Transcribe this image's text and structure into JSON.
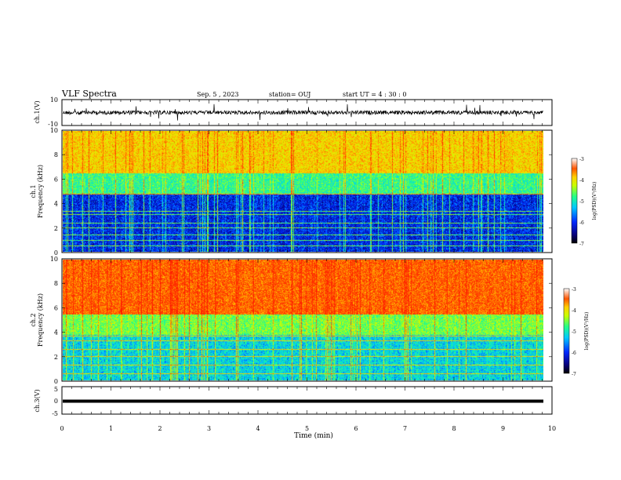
{
  "header": {
    "title": "VLF Spectra",
    "date": "Sep. 5 , 2023",
    "station": "station= OUJ",
    "start": "start  UT =  4 : 30 : 0"
  },
  "chart_data": [
    {
      "type": "line",
      "panel": "ch.1 waveform",
      "ylabel": "ch.1(V)",
      "ylim": [
        -10,
        10
      ],
      "y_ticks": [
        "10",
        "-10"
      ],
      "baseline": 0,
      "series": [
        {
          "values_range": [
            -10,
            10
          ]
        }
      ]
    },
    {
      "type": "heatmap",
      "panel": "ch.1 spectrogram",
      "ylabel": "ch.1  Frequency (kHz)",
      "ylim": [
        0,
        10
      ],
      "y_ticks": [
        "0",
        "2",
        "4",
        "6",
        "8",
        "10"
      ],
      "xlim": [
        0,
        10
      ],
      "colorbar": {
        "label": "log(PSD)(V²/Hz)",
        "range": [
          -7,
          -3
        ],
        "ticks": [
          "-3",
          "-4",
          "-5",
          "-6",
          "-7"
        ]
      },
      "bands": [
        {
          "f_range": [
            0,
            4.8
          ],
          "level": -6.5
        },
        {
          "f_range": [
            4.8,
            6.5
          ],
          "level": -5.3
        },
        {
          "f_range": [
            6.5,
            10
          ],
          "level": -4.2
        }
      ],
      "tone_lines_khz": [
        0.5,
        1.0,
        1.4,
        2.0,
        2.4,
        3.1,
        3.4,
        4.8
      ]
    },
    {
      "type": "heatmap",
      "panel": "ch.2 spectrogram",
      "ylabel": "ch.2  Frequency (kHz)",
      "ylim": [
        0,
        10
      ],
      "y_ticks": [
        "0",
        "2",
        "4",
        "6",
        "8",
        "10"
      ],
      "xlim": [
        0,
        10
      ],
      "colorbar": {
        "label": "log(PSD)(V²/Hz)",
        "range": [
          -7,
          -3
        ],
        "ticks": [
          "-3",
          "-4",
          "-5",
          "-6",
          "-7"
        ]
      },
      "bands": [
        {
          "f_range": [
            0,
            3.8
          ],
          "level": -5.7
        },
        {
          "f_range": [
            3.8,
            5.5
          ],
          "level": -5.0
        },
        {
          "f_range": [
            5.5,
            10
          ],
          "level": -3.6
        }
      ],
      "tone_lines_khz": [
        0.6,
        1.3,
        2.0,
        2.6,
        3.3,
        3.7
      ]
    },
    {
      "type": "line",
      "panel": "ch.3 waveform",
      "ylabel": "ch.3(V)",
      "ylim": [
        -5,
        5
      ],
      "y_ticks": [
        "5",
        "0",
        "-5"
      ],
      "series": [
        {
          "values": [
            0,
            0
          ]
        }
      ]
    }
  ],
  "x_axis": {
    "label": "Time  (min)",
    "ticks": [
      "0",
      "1",
      "2",
      "3",
      "4",
      "5",
      "6",
      "7",
      "8",
      "9",
      "10"
    ],
    "xlim": [
      0,
      10
    ],
    "data_end": 9.83
  },
  "colors": {
    "colormap": [
      "#08007a",
      "#0028ff",
      "#00c8ff",
      "#22ff88",
      "#c8ff00",
      "#ffd000",
      "#ff5500",
      "#ff1600"
    ],
    "line": "#000000"
  }
}
